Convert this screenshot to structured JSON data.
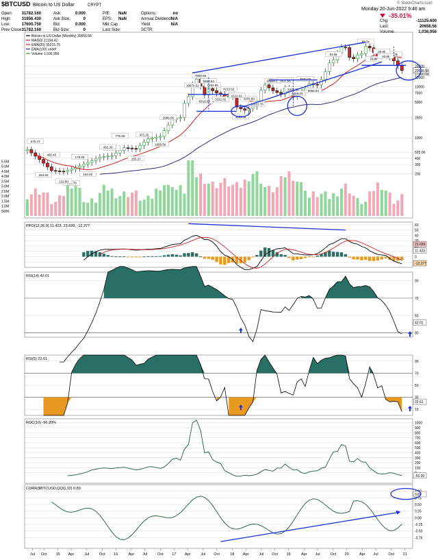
{
  "header": {
    "symbol": "$BTCUSD",
    "name": "Bitcoin to US Dollar",
    "type": "CRYPT",
    "date": "Monday   20-Jun-2022   9:46 am",
    "source": "© StockCharts.com",
    "change_pct": "-35.01%",
    "quote": [
      {
        "label": "Open:",
        "value": "31782.160"
      },
      {
        "label": "High:",
        "value": "31956.430"
      },
      {
        "label": "Low:",
        "value": "17600.750"
      },
      {
        "label": "Prev Close:",
        "value": "31782.160"
      }
    ],
    "quote2": [
      {
        "label": "Ask:",
        "value": "0.000"
      },
      {
        "label": "Ask Size:",
        "value": "0"
      },
      {
        "label": "Bid:",
        "value": "0.000"
      },
      {
        "label": "Bid Size:",
        "value": "0"
      }
    ],
    "quote3": [
      {
        "label": "P/E:",
        "value": "NaN"
      },
      {
        "label": "EPS:",
        "value": "NaN"
      },
      {
        "label": "Mkt Cap",
        "value": ""
      },
      {
        "label": "Last Size:",
        "value": ""
      }
    ],
    "quote4": [
      {
        "label": "Options:",
        "value": "no"
      },
      {
        "label": "Annual Dividend:",
        "value": "N/A"
      },
      {
        "label": "Yield",
        "value": "N/A"
      },
      {
        "label": "SCTR:",
        "value": ""
      }
    ],
    "quote5": [
      {
        "label": "Chg:",
        "value": "-11125.600"
      },
      {
        "label": "Last:",
        "value": "20656.56"
      },
      {
        "label": "Volume:",
        "value": "1,036,956"
      }
    ]
  },
  "chart_data": [
    {
      "type": "line",
      "panel": "price",
      "legend": [
        {
          "text": "Bitcoin to US Dollar (Monthly) 20656.56",
          "color": "#000000"
        },
        {
          "text": "MA(50) 21194.42",
          "color": "#cc2222"
        },
        {
          "text": "EMA(20) 35215.75",
          "color": "#cc2222"
        },
        {
          "text": "EMA(100) undef",
          "color": "#2a2a7a"
        },
        {
          "text": "Volume 1,036,956",
          "color": "#33a033"
        }
      ],
      "yscale": "log",
      "yticks": [
        "25000",
        "17500.00",
        "15000",
        "10000",
        "7500",
        "5000",
        "2500",
        "1000",
        "525.00",
        "400",
        "300",
        "200"
      ],
      "price_labels": [
        "20656.56"
      ],
      "annotations": [
        "19870.61",
        "7868.66",
        "6916.68",
        "6463.54",
        "7254.85",
        "5311.02",
        "4213.62",
        "3123.11",
        "3283.00",
        "12922.76",
        "10500.54",
        "7437.56",
        "6435.32",
        "4459.03",
        "3940.00",
        "5855.63",
        "64.9k",
        "69.0k",
        "48.2k",
        "29.9k",
        "33.0k",
        "25.6k",
        "675.47",
        "460.45",
        "294.50",
        "259.70",
        "178.93",
        "152.40",
        "132.50",
        "463.25",
        "776.66",
        "452.30",
        "255.27",
        "471.26",
        "2985.06",
        "1809.59",
        "9111.02"
      ],
      "volume_ticks": [
        "5.5M",
        "5.0M",
        "4.5M",
        "4.0M",
        "3.5M",
        "3.0M",
        "2.5M",
        "2.0M",
        "1.5M",
        "1.0M",
        "500K"
      ]
    },
    {
      "type": "line",
      "panel": "ppo",
      "label": "PPO(12,26,9) 11.423, 23.699, -12.277",
      "yticks": [
        "60",
        "50",
        "40",
        "30",
        "20",
        "10",
        "0",
        "-10"
      ],
      "values_labels": [
        "23.699",
        "11.423",
        "-12.277"
      ]
    },
    {
      "type": "line",
      "panel": "rsi14",
      "label": "RSI(14) 42.01",
      "yticks": [
        "90",
        "70",
        "50",
        "30"
      ],
      "value_label": "42.01"
    },
    {
      "type": "line",
      "panel": "rsi5",
      "label": "RSI(5) 22.61",
      "yticks": [
        "90",
        "70",
        "50",
        "30",
        "10"
      ],
      "value_label": "22.61"
    },
    {
      "type": "line",
      "panel": "roc",
      "label": "ROC(10) -56.20%",
      "yticks": [
        "1000",
        "900",
        "800",
        "700",
        "600",
        "500",
        "400",
        "300",
        "200",
        "100",
        "0"
      ],
      "value_label": "-56.20"
    },
    {
      "type": "line",
      "panel": "corr",
      "label": "CORR($BTCUSD,QQQ,10) 0.89",
      "yticks": [
        "1.00",
        "0.75",
        "0.50",
        "0.25",
        "0.00",
        "-0.25",
        "-0.50",
        "-0.75"
      ],
      "value_label": "0.89"
    }
  ],
  "xaxis": [
    {
      "t": "Jul",
      "f": 0.02
    },
    {
      "t": "Oct",
      "f": 0.05
    },
    {
      "t": "15",
      "f": 0.086
    },
    {
      "t": "Apr",
      "f": 0.12
    },
    {
      "t": "Jul",
      "f": 0.16
    },
    {
      "t": "Oct",
      "f": 0.2
    },
    {
      "t": "16",
      "f": 0.235
    },
    {
      "t": "Apr",
      "f": 0.275
    },
    {
      "t": "Jul",
      "f": 0.31
    },
    {
      "t": "Oct",
      "f": 0.35
    },
    {
      "t": "17",
      "f": 0.385
    },
    {
      "t": "Apr",
      "f": 0.42
    },
    {
      "t": "Jul",
      "f": 0.46
    },
    {
      "t": "Oct",
      "f": 0.495
    },
    {
      "t": "18",
      "f": 0.535
    },
    {
      "t": "Apr",
      "f": 0.57
    },
    {
      "t": "Jul",
      "f": 0.61
    },
    {
      "t": "Oct",
      "f": 0.645
    },
    {
      "t": "19",
      "f": 0.68
    },
    {
      "t": "Apr",
      "f": 0.72
    },
    {
      "t": "Jul",
      "f": 0.755
    },
    {
      "t": "Oct",
      "f": 0.795
    },
    {
      "t": "20",
      "f": 0.83
    },
    {
      "t": "Apr",
      "f": 0.87
    },
    {
      "t": "Jul",
      "f": 0.905
    },
    {
      "t": "Oct",
      "f": 0.945
    },
    {
      "t": "21",
      "f": 0.98
    }
  ],
  "colors": {
    "up": "#2e9e3e",
    "down": "#cc2a2a",
    "ma": "#cc2222",
    "ema100": "#2a2a7a",
    "teal": "#2a6f66",
    "orange": "#e89a20",
    "annot": "#1a2ed6",
    "grid": "#d8d8d8"
  }
}
